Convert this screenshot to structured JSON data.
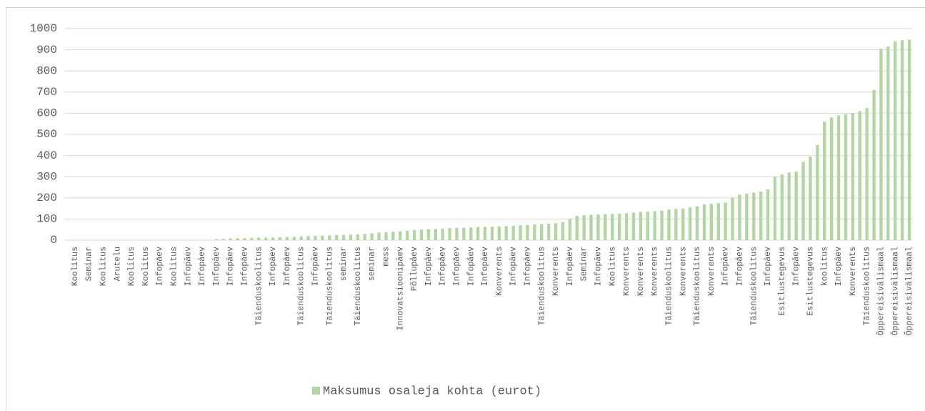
{
  "chart_data": {
    "type": "bar",
    "categories": [
      null,
      "Koolitus",
      null,
      "Seminar",
      null,
      "Koolitus",
      null,
      "Arutelu",
      null,
      "Koolitus",
      null,
      "Koolitus",
      null,
      "Infopäev",
      null,
      "Koolitus",
      null,
      "Infopäev",
      null,
      "Infopäev",
      null,
      "Infopäev",
      null,
      "Infopäev",
      null,
      "Infopäev",
      null,
      "Täienduskoolitus",
      null,
      "Infopäev",
      null,
      "Infopäev",
      null,
      "Täienduskoolitus",
      null,
      "Infopäev",
      null,
      "Täienduskoolitus",
      null,
      "seminar",
      null,
      "Täienduskoolitus",
      null,
      "seminar",
      null,
      "mess",
      null,
      "Innovatsioonipäev",
      null,
      "Põllupäev",
      null,
      "Infopäev",
      null,
      "Infopäev",
      null,
      "Infopäev",
      null,
      "Infopäev",
      null,
      "Infopäev",
      null,
      "Konverents",
      null,
      "Infopäev",
      null,
      "Infopäev",
      null,
      "Täienduskoolitus",
      null,
      "Konverents",
      null,
      "Infopäev",
      null,
      "Seminar",
      null,
      "Infopäev",
      null,
      "Koolitus",
      null,
      "Konverents",
      null,
      "Konverents",
      null,
      "Konverents",
      null,
      "Täienduskoolitus",
      null,
      "Konverents",
      null,
      "Täienduskoolitus",
      null,
      "Konverents",
      null,
      "Infopäev",
      null,
      "Infopäev",
      null,
      "Täienduskoolitus",
      null,
      "Infopäev",
      null,
      "Esitlustegevus",
      null,
      "Infopäev",
      null,
      "Esitlustegevus",
      null,
      "koolitus",
      null,
      "Infopäev",
      null,
      "Konverents",
      null,
      "Täienduskoolitus",
      null,
      "Õppereisivälismaal",
      null,
      "Õppereisivälismaal",
      null,
      "Õppereisivälismaal"
    ],
    "series": [
      {
        "name": "Maksumus osaleja kohta (eurot)",
        "color": "#b3d5a1",
        "values": [
          0,
          0,
          0,
          0,
          0,
          0,
          0,
          0,
          0,
          0,
          0,
          0,
          0,
          0,
          0,
          0,
          0,
          0,
          0,
          0,
          0,
          5,
          6,
          8,
          9,
          10,
          11,
          12,
          12,
          13,
          14,
          15,
          16,
          18,
          19,
          20,
          21,
          22,
          24,
          25,
          26,
          27,
          29,
          32,
          36,
          38,
          40,
          42,
          45,
          48,
          50,
          52,
          53,
          55,
          57,
          58,
          59,
          60,
          62,
          63,
          64,
          65,
          66,
          68,
          70,
          72,
          75,
          76,
          78,
          80,
          85,
          100,
          115,
          118,
          120,
          122,
          123,
          124,
          125,
          127,
          130,
          134,
          135,
          137,
          140,
          145,
          148,
          150,
          155,
          160,
          170,
          172,
          175,
          178,
          200,
          215,
          220,
          225,
          230,
          240,
          300,
          310,
          320,
          325,
          370,
          395,
          450,
          560,
          580,
          590,
          595,
          600,
          610,
          625,
          710,
          905,
          915,
          940,
          945,
          948
        ]
      }
    ],
    "ylim": [
      0,
      1000
    ],
    "yticks": [
      0,
      100,
      200,
      300,
      400,
      500,
      600,
      700,
      800,
      900,
      1000
    ],
    "grid": true,
    "legend": "bottom"
  }
}
